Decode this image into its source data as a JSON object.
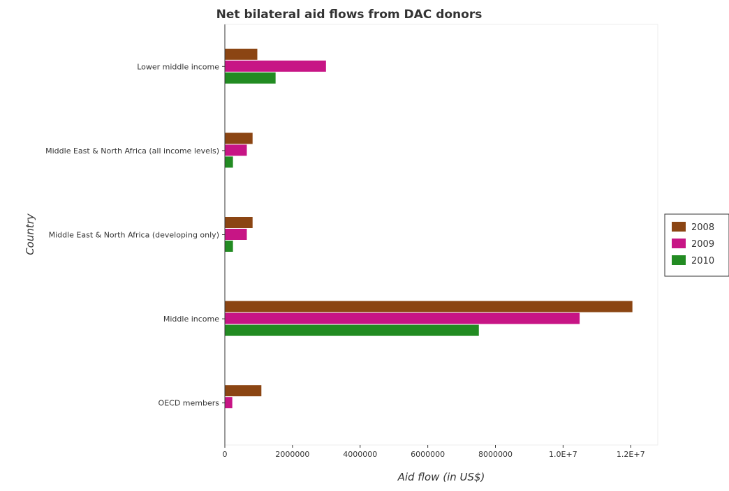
{
  "chart_data": {
    "type": "bar",
    "orientation": "horizontal",
    "title": "Net bilateral aid flows from DAC donors",
    "xlabel": "Aid flow (in US$)",
    "ylabel": "Country",
    "categories": [
      "Lower middle income",
      "Middle East & North Africa (all income levels)",
      "Middle East & North Africa (developing only)",
      "Middle income",
      "OECD members"
    ],
    "series": [
      {
        "name": "2008",
        "color": "#8B4513",
        "values": [
          960000,
          820000,
          820000,
          12050000,
          1080000
        ]
      },
      {
        "name": "2009",
        "color": "#C71585",
        "values": [
          2990000,
          650000,
          650000,
          10490000,
          220000
        ]
      },
      {
        "name": "2010",
        "color": "#228B22",
        "values": [
          1500000,
          240000,
          240000,
          7510000,
          10000
        ]
      }
    ],
    "xlim": [
      0,
      12800000
    ],
    "xticks": [
      0,
      2000000,
      4000000,
      6000000,
      8000000,
      10000000,
      12000000
    ],
    "xtick_labels": [
      "0",
      "2000000",
      "4000000",
      "6000000",
      "8000000",
      "1.0E+7",
      "1.2E+7"
    ],
    "grid": false,
    "legend_position": "right"
  }
}
